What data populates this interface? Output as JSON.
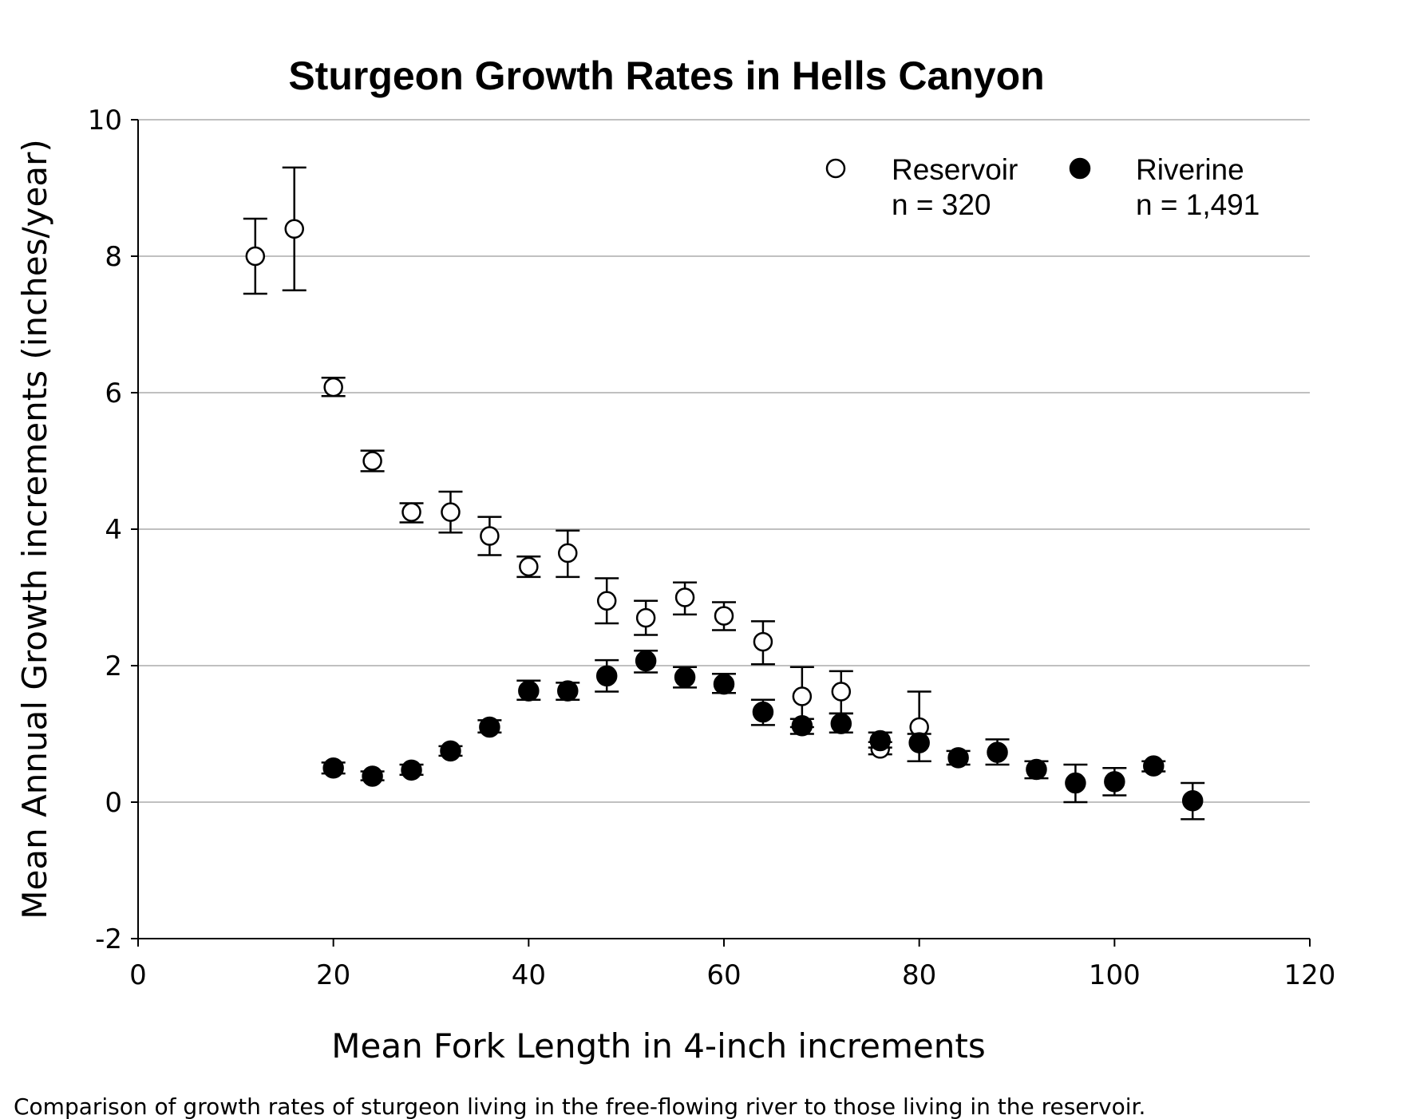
{
  "chart_data": {
    "type": "scatter",
    "title": "Sturgeon Growth Rates in Hells Canyon",
    "xlabel": "Mean Fork Length in 4-inch increments",
    "ylabel": "Mean Annual Growth increments (inches/year)",
    "xlim": [
      0,
      120
    ],
    "ylim": [
      -2,
      10
    ],
    "xticks": [
      0,
      20,
      40,
      60,
      80,
      100,
      120
    ],
    "yticks": [
      -2,
      0,
      2,
      4,
      6,
      8,
      10
    ],
    "grid": "horizontal",
    "legend_placement": "top-right",
    "error_bars": true,
    "series": [
      {
        "name": "Reservoir",
        "n_label": "n = 320",
        "marker": "open-circle",
        "x": [
          12,
          16,
          20,
          24,
          28,
          32,
          36,
          40,
          44,
          48,
          52,
          56,
          60,
          64,
          68,
          72,
          76,
          80
        ],
        "y": [
          8.0,
          8.4,
          6.08,
          5.0,
          4.25,
          4.25,
          3.9,
          3.45,
          3.65,
          2.95,
          2.7,
          3.0,
          2.73,
          2.35,
          1.55,
          1.62,
          0.78,
          1.1
        ],
        "y_low": [
          7.45,
          7.5,
          5.95,
          4.85,
          4.1,
          3.95,
          3.62,
          3.3,
          3.3,
          2.62,
          2.45,
          2.75,
          2.52,
          2.02,
          1.1,
          1.3,
          0.7,
          0.6
        ],
        "y_high": [
          8.55,
          9.3,
          6.22,
          5.15,
          4.38,
          4.55,
          4.18,
          3.6,
          3.98,
          3.28,
          2.95,
          3.22,
          2.93,
          2.65,
          1.98,
          1.92,
          0.88,
          1.62
        ]
      },
      {
        "name": "Riverine",
        "n_label": "n = 1,491",
        "marker": "filled-circle",
        "x": [
          20,
          24,
          28,
          32,
          36,
          40,
          44,
          48,
          52,
          56,
          60,
          64,
          68,
          72,
          76,
          80,
          84,
          88,
          92,
          96,
          100,
          104,
          108
        ],
        "y": [
          0.5,
          0.38,
          0.47,
          0.75,
          1.1,
          1.63,
          1.63,
          1.85,
          2.07,
          1.83,
          1.73,
          1.32,
          1.12,
          1.15,
          0.9,
          0.87,
          0.65,
          0.73,
          0.48,
          0.28,
          0.3,
          0.53,
          0.02
        ],
        "y_low": [
          0.42,
          0.32,
          0.4,
          0.68,
          1.02,
          1.5,
          1.5,
          1.62,
          1.9,
          1.68,
          1.6,
          1.13,
          1.0,
          1.02,
          0.8,
          0.6,
          0.55,
          0.55,
          0.35,
          0.0,
          0.1,
          0.45,
          -0.25
        ],
        "y_high": [
          0.58,
          0.45,
          0.55,
          0.82,
          1.2,
          1.78,
          1.75,
          2.08,
          2.22,
          1.98,
          1.88,
          1.5,
          1.22,
          1.3,
          1.02,
          1.0,
          0.75,
          0.92,
          0.6,
          0.55,
          0.5,
          0.6,
          0.28
        ]
      }
    ],
    "colors": {
      "marker": "#000000",
      "grid": "#c0c0c0",
      "background": "#ffffff"
    }
  },
  "caption": "Comparison of growth rates of sturgeon living in the free-flowing river to those living in the reservoir."
}
